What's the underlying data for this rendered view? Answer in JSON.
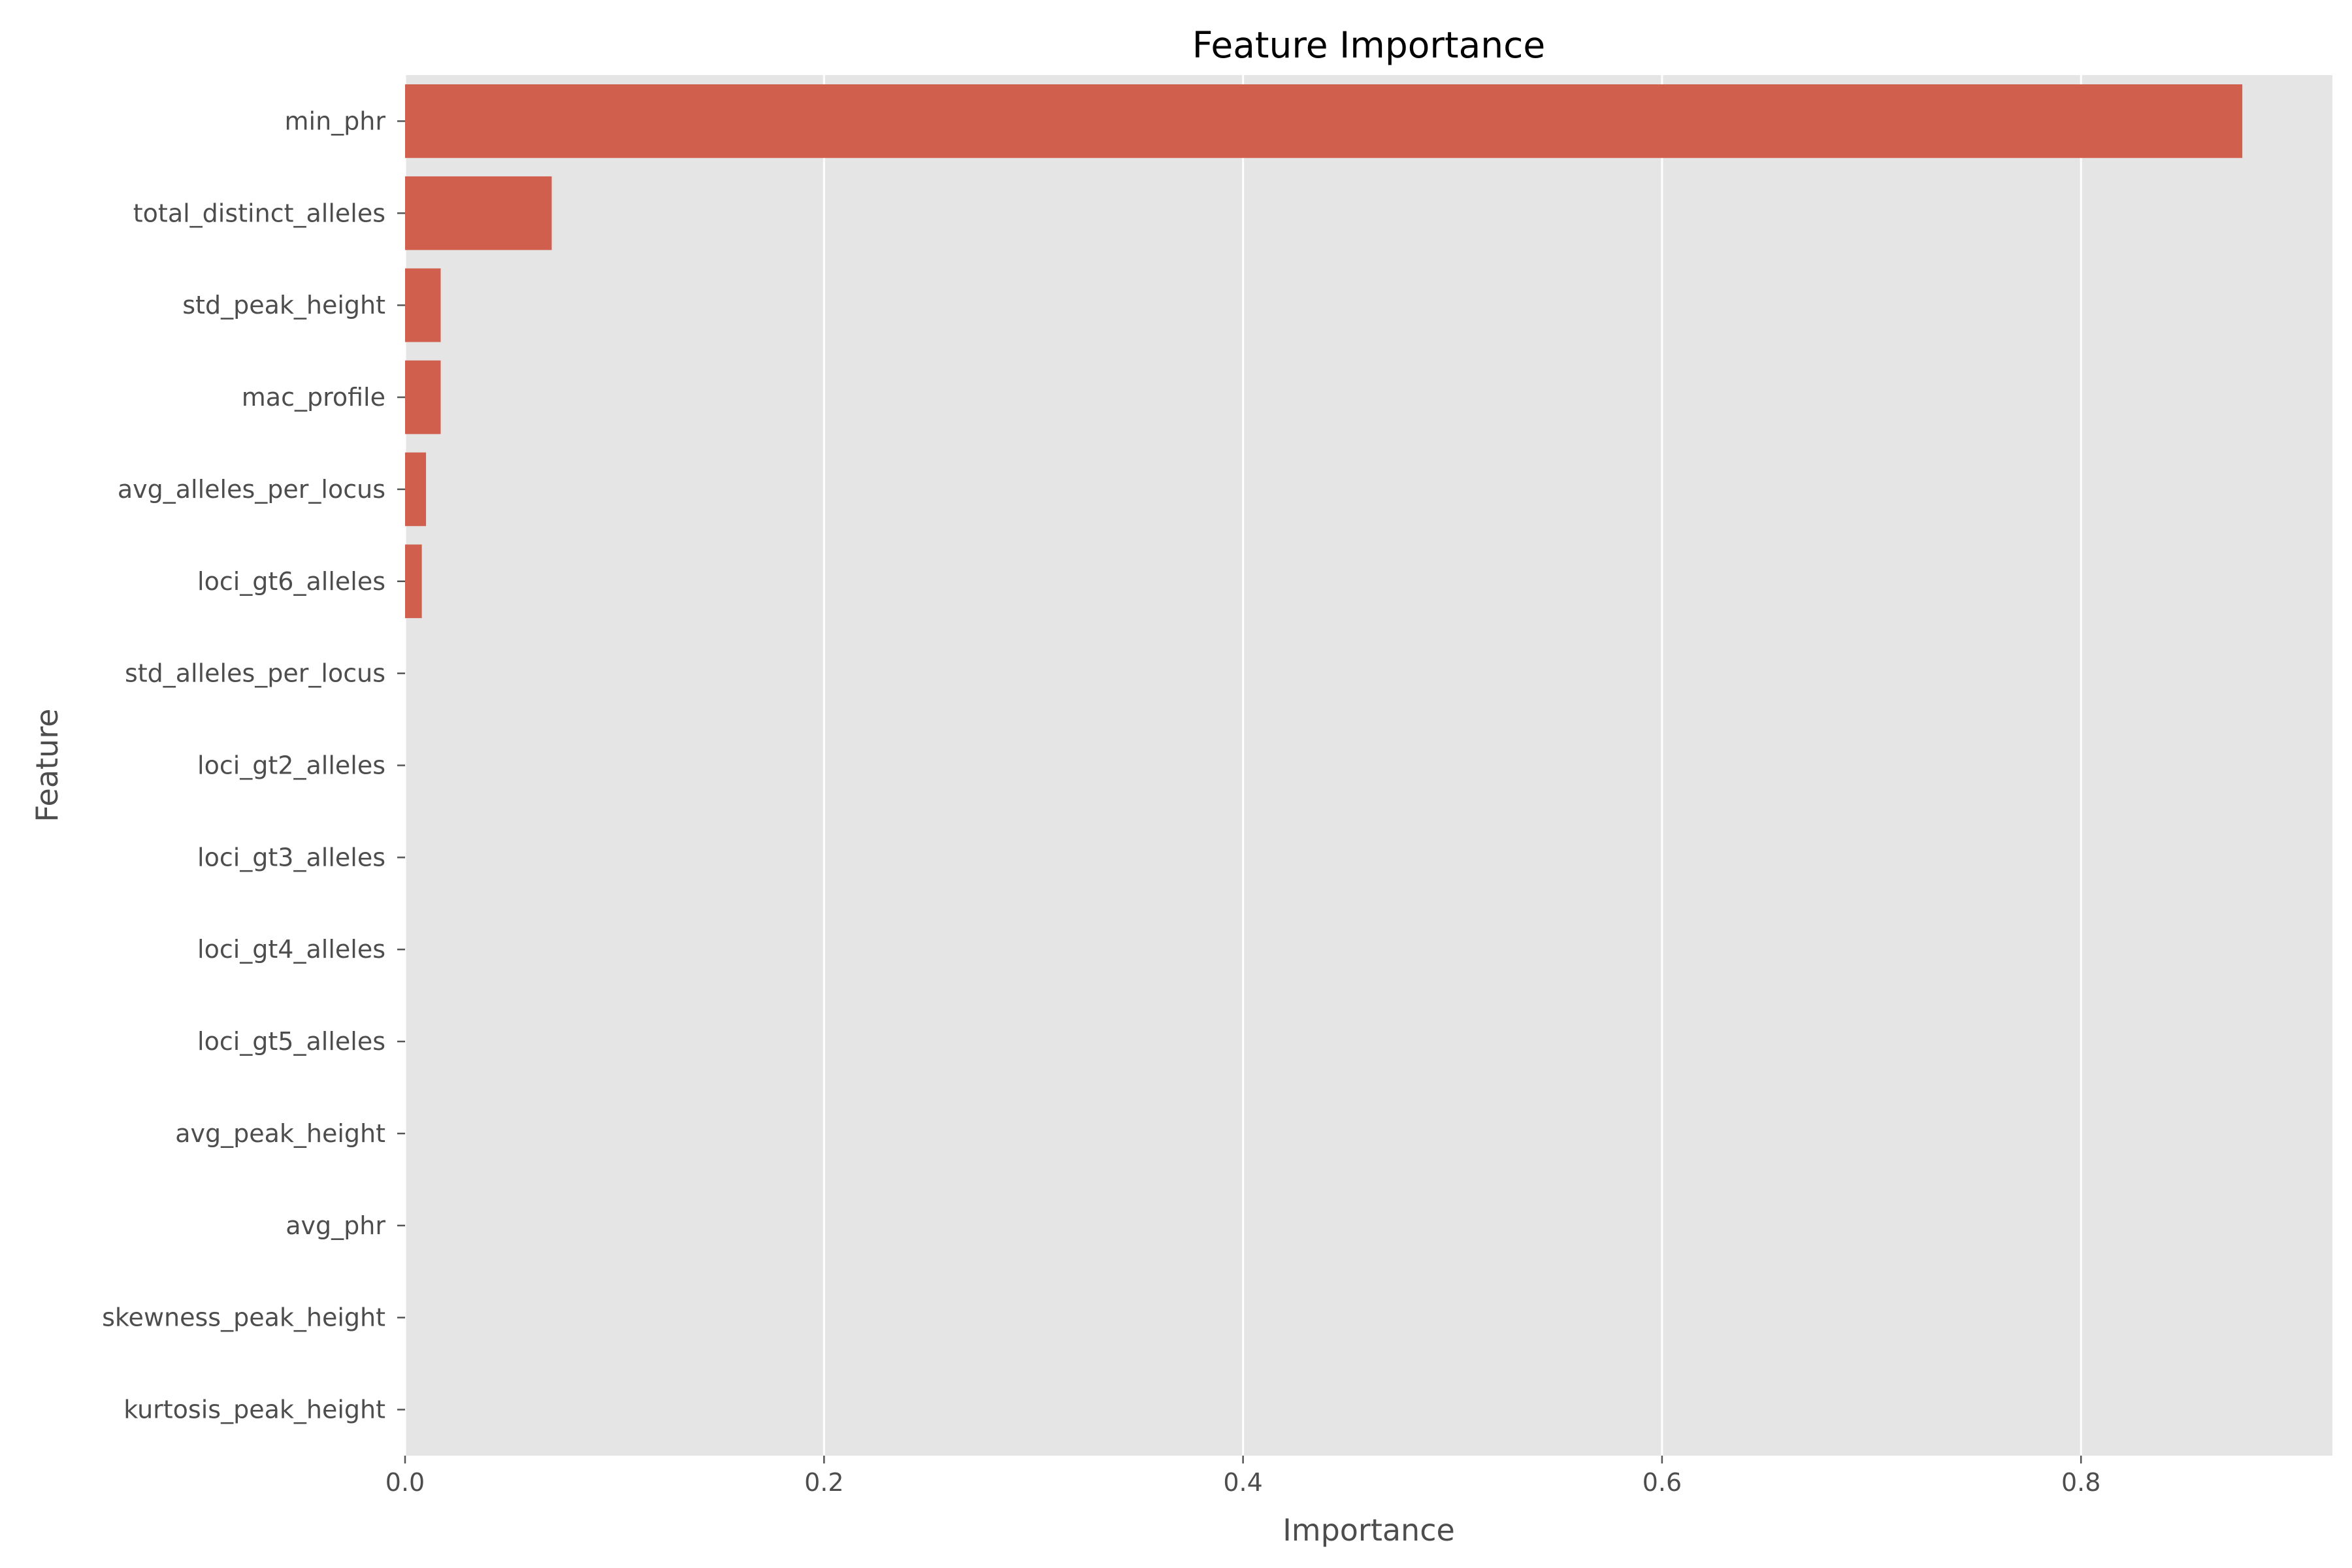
{
  "chart_data": {
    "type": "bar",
    "orientation": "horizontal",
    "title": "Feature Importance",
    "xlabel": "Importance",
    "ylabel": "Feature",
    "categories": [
      "min_phr",
      "total_distinct_alleles",
      "std_peak_height",
      "mac_profile",
      "avg_alleles_per_locus",
      "loci_gt6_alleles",
      "std_alleles_per_locus",
      "loci_gt2_alleles",
      "loci_gt3_alleles",
      "loci_gt4_alleles",
      "loci_gt5_alleles",
      "avg_peak_height",
      "avg_phr",
      "skewness_peak_height",
      "kurtosis_peak_height"
    ],
    "values": [
      0.877,
      0.07,
      0.017,
      0.017,
      0.01,
      0.008,
      0,
      0,
      0,
      0,
      0,
      0,
      0,
      0,
      0
    ],
    "xlim": [
      0,
      0.92
    ],
    "xticks": [
      0.0,
      0.2,
      0.4,
      0.6,
      0.8
    ],
    "xtick_labels": [
      "0.0",
      "0.2",
      "0.4",
      "0.6",
      "0.8"
    ],
    "grid": true,
    "colors": {
      "bar": "#d0604d",
      "plot_background": "#e5e5e5",
      "grid": "#ffffff",
      "text": "#4d4d4d"
    }
  }
}
